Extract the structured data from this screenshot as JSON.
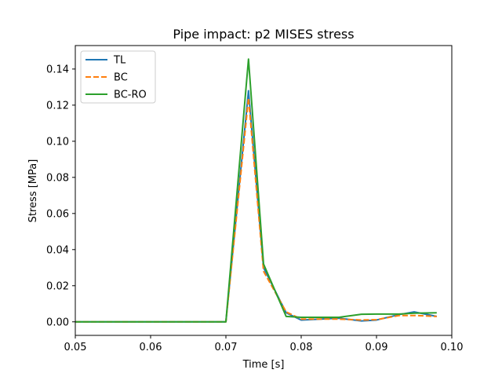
{
  "chart_data": {
    "type": "line",
    "title": "Pipe impact: p2 MISES stress",
    "xlabel": "Time [s]",
    "ylabel": "Stress [MPa]",
    "xlim": [
      0.05,
      0.1
    ],
    "ylim": [
      -0.0075,
      0.153
    ],
    "xticks": [
      0.05,
      0.06,
      0.07,
      0.08,
      0.09,
      0.1
    ],
    "xtick_labels": [
      "0.05",
      "0.06",
      "0.07",
      "0.08",
      "0.09",
      "0.10"
    ],
    "yticks": [
      0.0,
      0.02,
      0.04,
      0.06,
      0.08,
      0.1,
      0.12,
      0.14
    ],
    "ytick_labels": [
      "0.00",
      "0.02",
      "0.04",
      "0.06",
      "0.08",
      "0.10",
      "0.12",
      "0.14"
    ],
    "grid": false,
    "legend_position": "top-left",
    "series": [
      {
        "name": "TL",
        "color": "#1f77b4",
        "dash": "solid",
        "x": [
          0.05,
          0.07,
          0.073,
          0.075,
          0.078,
          0.08,
          0.085,
          0.088,
          0.09,
          0.093,
          0.095,
          0.098
        ],
        "y": [
          0.0,
          0.0,
          0.128,
          0.03,
          0.005,
          0.001,
          0.002,
          0.0005,
          0.001,
          0.004,
          0.0055,
          0.003
        ]
      },
      {
        "name": "BC",
        "color": "#ff7f0e",
        "dash": "dashed",
        "x": [
          0.05,
          0.07,
          0.073,
          0.075,
          0.078,
          0.08,
          0.085,
          0.088,
          0.09,
          0.093,
          0.095,
          0.098
        ],
        "y": [
          0.0,
          0.0,
          0.124,
          0.028,
          0.0055,
          0.0015,
          0.0015,
          0.001,
          0.0012,
          0.0035,
          0.0035,
          0.003
        ]
      },
      {
        "name": "BC-RO",
        "color": "#2ca02c",
        "dash": "solid",
        "x": [
          0.05,
          0.07,
          0.073,
          0.075,
          0.078,
          0.08,
          0.085,
          0.088,
          0.09,
          0.093,
          0.095,
          0.098
        ],
        "y": [
          0.0,
          0.0,
          0.1455,
          0.032,
          0.003,
          0.0025,
          0.0025,
          0.0042,
          0.0043,
          0.0043,
          0.0048,
          0.005
        ]
      }
    ]
  }
}
